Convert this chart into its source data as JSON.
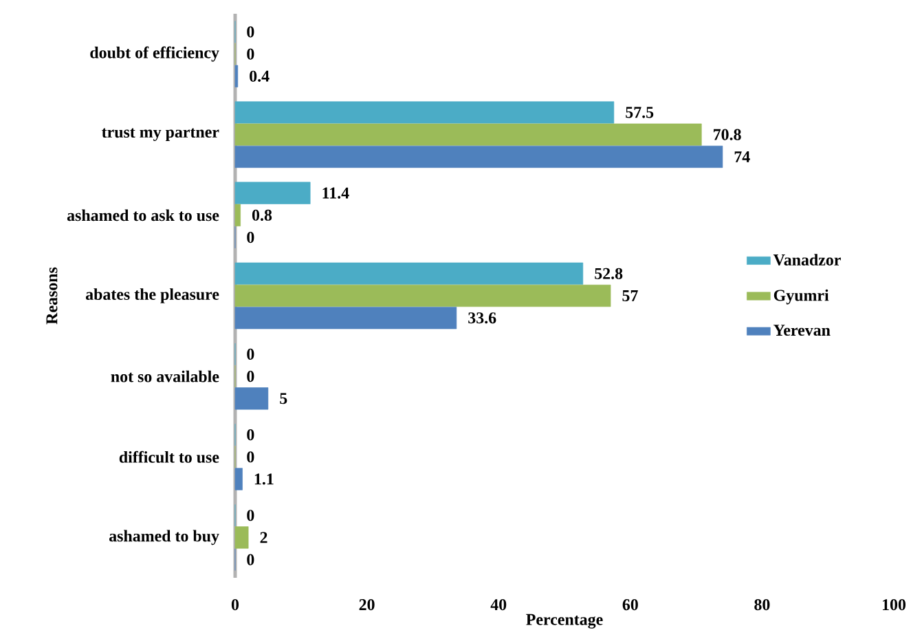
{
  "chart_data": {
    "type": "bar",
    "orientation": "horizontal",
    "xlabel": "Percentage",
    "ylabel": "Reasons",
    "categories": [
      "doubt of efficiency",
      "trust my partner",
      "ashamed to ask to use",
      "abates the pleasure",
      "not so available",
      "difficult to use",
      "ashamed to buy"
    ],
    "series": [
      {
        "name": "Vanadzor",
        "color": "#4bacc6",
        "values": [
          0,
          57.5,
          11.4,
          52.8,
          0,
          0,
          0
        ]
      },
      {
        "name": "Gyumri",
        "color": "#9bbb59",
        "values": [
          0,
          70.8,
          0.8,
          57,
          0,
          0,
          2
        ]
      },
      {
        "name": "Yerevan",
        "color": "#4f81bd",
        "values": [
          0.4,
          74,
          0,
          33.6,
          5,
          1.1,
          0
        ]
      }
    ],
    "xlim": [
      0,
      100
    ],
    "xticks": [
      0,
      20,
      40,
      60,
      80,
      100
    ],
    "legend": "right",
    "data_labels": true
  }
}
